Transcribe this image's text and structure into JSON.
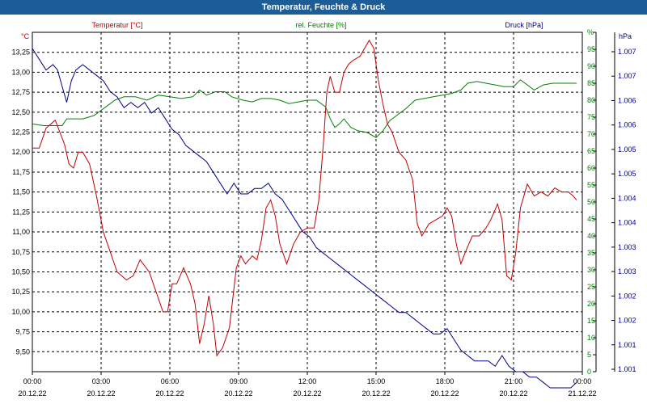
{
  "title": "Temperatur, Feuchte & Druck",
  "chart_data": {
    "type": "line",
    "x_ticks": [
      {
        "time": "00:00",
        "date": "20.12.22"
      },
      {
        "time": "03:00",
        "date": "20.12.22"
      },
      {
        "time": "06:00",
        "date": "20.12.22"
      },
      {
        "time": "09:00",
        "date": "20.12.22"
      },
      {
        "time": "12:00",
        "date": "20.12.22"
      },
      {
        "time": "15:00",
        "date": "20.12.22"
      },
      {
        "time": "18:00",
        "date": "20.12.22"
      },
      {
        "time": "21:00",
        "date": "20.12.22"
      },
      {
        "time": "00:00",
        "date": "21.12.22"
      }
    ],
    "xlim_hours": [
      0,
      24
    ],
    "grid": true,
    "axes": {
      "temperature": {
        "unit": "°C",
        "color": "#c00000",
        "ylim": [
          9.25,
          13.5
        ],
        "ticks": [
          "9,50",
          "9,75",
          "10,00",
          "10,25",
          "10,50",
          "10,75",
          "11,00",
          "11,25",
          "11,50",
          "11,75",
          "12,00",
          "12,25",
          "12,50",
          "12,75",
          "13,00",
          "13,25"
        ]
      },
      "humidity": {
        "unit": "%",
        "color": "#008000",
        "ylim": [
          0,
          100
        ],
        "ticks": [
          "0",
          "5",
          "10",
          "15",
          "20",
          "25",
          "30",
          "35",
          "40",
          "45",
          "50",
          "55",
          "60",
          "65",
          "70",
          "75",
          "80",
          "85",
          "90",
          "95",
          "%"
        ]
      },
      "pressure": {
        "unit": "hPa",
        "color": "#00008b",
        "ylim": [
          1.001,
          1.0073
        ],
        "ticks": [
          "1.001",
          "1.001",
          "1.002",
          "1.002",
          "1.003",
          "1.003",
          "1.004",
          "1.004",
          "1.005",
          "1.005",
          "1.006",
          "1.006",
          "1.007",
          "1.007"
        ]
      }
    },
    "series": [
      {
        "name": "Temperatur [°C]",
        "axis": "temperature",
        "color": "#c00000",
        "points": [
          [
            0,
            12.05
          ],
          [
            0.3,
            12.05
          ],
          [
            0.6,
            12.3
          ],
          [
            1.0,
            12.4
          ],
          [
            1.4,
            12.1
          ],
          [
            1.6,
            11.85
          ],
          [
            1.8,
            11.8
          ],
          [
            2.0,
            12.0
          ],
          [
            2.2,
            12.0
          ],
          [
            2.5,
            11.85
          ],
          [
            2.8,
            11.45
          ],
          [
            3.1,
            11.0
          ],
          [
            3.4,
            10.75
          ],
          [
            3.7,
            10.5
          ],
          [
            4.1,
            10.4
          ],
          [
            4.4,
            10.45
          ],
          [
            4.7,
            10.65
          ],
          [
            5.1,
            10.5
          ],
          [
            5.4,
            10.25
          ],
          [
            5.7,
            10.0
          ],
          [
            5.9,
            10.0
          ],
          [
            6.1,
            10.35
          ],
          [
            6.3,
            10.35
          ],
          [
            6.6,
            10.55
          ],
          [
            6.9,
            10.35
          ],
          [
            7.1,
            10.1
          ],
          [
            7.3,
            9.6
          ],
          [
            7.5,
            9.85
          ],
          [
            7.7,
            10.2
          ],
          [
            7.9,
            9.85
          ],
          [
            8.05,
            9.45
          ],
          [
            8.3,
            9.55
          ],
          [
            8.6,
            9.8
          ],
          [
            8.9,
            10.55
          ],
          [
            9.1,
            10.7
          ],
          [
            9.3,
            10.6
          ],
          [
            9.6,
            10.7
          ],
          [
            9.8,
            10.65
          ],
          [
            10.0,
            10.9
          ],
          [
            10.2,
            11.3
          ],
          [
            10.4,
            11.4
          ],
          [
            10.6,
            11.2
          ],
          [
            10.8,
            10.85
          ],
          [
            11.1,
            10.6
          ],
          [
            11.4,
            10.85
          ],
          [
            11.7,
            11.0
          ],
          [
            12.0,
            11.05
          ],
          [
            12.3,
            11.05
          ],
          [
            12.5,
            11.4
          ],
          [
            12.7,
            12.1
          ],
          [
            12.85,
            12.75
          ],
          [
            13.0,
            12.95
          ],
          [
            13.2,
            12.75
          ],
          [
            13.4,
            12.75
          ],
          [
            13.6,
            13.0
          ],
          [
            13.8,
            13.1
          ],
          [
            14.0,
            13.15
          ],
          [
            14.3,
            13.2
          ],
          [
            14.5,
            13.3
          ],
          [
            14.7,
            13.4
          ],
          [
            14.9,
            13.3
          ],
          [
            15.1,
            12.9
          ],
          [
            15.3,
            12.6
          ],
          [
            15.5,
            12.35
          ],
          [
            15.7,
            12.25
          ],
          [
            16.0,
            12.0
          ],
          [
            16.3,
            11.9
          ],
          [
            16.6,
            11.65
          ],
          [
            16.8,
            11.1
          ],
          [
            17.0,
            10.95
          ],
          [
            17.3,
            11.1
          ],
          [
            17.6,
            11.15
          ],
          [
            17.9,
            11.2
          ],
          [
            18.1,
            11.3
          ],
          [
            18.3,
            11.2
          ],
          [
            18.5,
            10.85
          ],
          [
            18.7,
            10.6
          ],
          [
            18.9,
            10.75
          ],
          [
            19.2,
            10.95
          ],
          [
            19.5,
            10.95
          ],
          [
            19.8,
            11.05
          ],
          [
            20.0,
            11.15
          ],
          [
            20.3,
            11.35
          ],
          [
            20.5,
            11.15
          ],
          [
            20.7,
            10.45
          ],
          [
            20.9,
            10.4
          ],
          [
            21.1,
            10.75
          ],
          [
            21.3,
            11.3
          ],
          [
            21.6,
            11.6
          ],
          [
            21.9,
            11.45
          ],
          [
            22.2,
            11.5
          ],
          [
            22.5,
            11.45
          ],
          [
            22.8,
            11.55
          ],
          [
            23.1,
            11.5
          ],
          [
            23.4,
            11.5
          ],
          [
            23.6,
            11.45
          ],
          [
            23.75,
            11.4
          ]
        ]
      },
      {
        "name": "rel. Feuchte [%]",
        "axis": "humidity",
        "color": "#008000",
        "points": [
          [
            0,
            73
          ],
          [
            0.5,
            72.5
          ],
          [
            1.0,
            72.5
          ],
          [
            1.3,
            72.5
          ],
          [
            1.5,
            74.5
          ],
          [
            1.8,
            74.5
          ],
          [
            2.2,
            74.5
          ],
          [
            2.7,
            75.5
          ],
          [
            3.0,
            77
          ],
          [
            3.3,
            78.5
          ],
          [
            3.6,
            80
          ],
          [
            4.0,
            81
          ],
          [
            4.5,
            81
          ],
          [
            5.0,
            80
          ],
          [
            5.5,
            81.5
          ],
          [
            6.0,
            81
          ],
          [
            6.5,
            80.5
          ],
          [
            7.0,
            81
          ],
          [
            7.3,
            83
          ],
          [
            7.6,
            81.5
          ],
          [
            8.0,
            82.5
          ],
          [
            8.4,
            82.5
          ],
          [
            8.7,
            81
          ],
          [
            9.2,
            80
          ],
          [
            9.6,
            79.5
          ],
          [
            10.0,
            80.5
          ],
          [
            10.4,
            80.5
          ],
          [
            10.8,
            80
          ],
          [
            11.2,
            79
          ],
          [
            11.6,
            79.5
          ],
          [
            12.0,
            80
          ],
          [
            12.4,
            80
          ],
          [
            12.8,
            78
          ],
          [
            13.0,
            74.5
          ],
          [
            13.2,
            72
          ],
          [
            13.4,
            73
          ],
          [
            13.6,
            74.5
          ],
          [
            13.9,
            72
          ],
          [
            14.2,
            71
          ],
          [
            14.6,
            70.5
          ],
          [
            15.0,
            69
          ],
          [
            15.3,
            71
          ],
          [
            15.6,
            74
          ],
          [
            15.9,
            75.5
          ],
          [
            16.3,
            77.5
          ],
          [
            16.7,
            80
          ],
          [
            17.1,
            80.5
          ],
          [
            17.5,
            81
          ],
          [
            17.9,
            81.5
          ],
          [
            18.3,
            82
          ],
          [
            18.7,
            83
          ],
          [
            19.0,
            85
          ],
          [
            19.4,
            85.5
          ],
          [
            19.8,
            85
          ],
          [
            20.2,
            84.5
          ],
          [
            20.6,
            84
          ],
          [
            21.0,
            84
          ],
          [
            21.3,
            86
          ],
          [
            21.6,
            84.5
          ],
          [
            21.9,
            83
          ],
          [
            22.3,
            84.5
          ],
          [
            22.7,
            85
          ],
          [
            23.1,
            85
          ],
          [
            23.5,
            85
          ],
          [
            23.75,
            85
          ]
        ]
      },
      {
        "name": "Druck [hPa]",
        "axis": "pressure",
        "color": "#00008b",
        "points": [
          [
            0,
            1.007
          ],
          [
            0.3,
            1.0068
          ],
          [
            0.6,
            1.0066
          ],
          [
            0.9,
            1.0067
          ],
          [
            1.1,
            1.0066
          ],
          [
            1.3,
            1.0063
          ],
          [
            1.5,
            1.006
          ],
          [
            1.7,
            1.0064
          ],
          [
            1.9,
            1.0066
          ],
          [
            2.2,
            1.0067
          ],
          [
            2.5,
            1.0066
          ],
          [
            2.8,
            1.0065
          ],
          [
            3.1,
            1.0064
          ],
          [
            3.4,
            1.0062
          ],
          [
            3.7,
            1.0061
          ],
          [
            4.0,
            1.0059
          ],
          [
            4.3,
            1.006
          ],
          [
            4.6,
            1.0059
          ],
          [
            4.9,
            1.006
          ],
          [
            5.2,
            1.0058
          ],
          [
            5.5,
            1.0059
          ],
          [
            5.8,
            1.0057
          ],
          [
            6.1,
            1.0055
          ],
          [
            6.4,
            1.0054
          ],
          [
            6.7,
            1.0052
          ],
          [
            7.0,
            1.0051
          ],
          [
            7.3,
            1.005
          ],
          [
            7.6,
            1.0049
          ],
          [
            7.9,
            1.0047
          ],
          [
            8.2,
            1.0045
          ],
          [
            8.5,
            1.0043
          ],
          [
            8.8,
            1.0045
          ],
          [
            9.1,
            1.0043
          ],
          [
            9.4,
            1.0043
          ],
          [
            9.7,
            1.0044
          ],
          [
            10.0,
            1.0044
          ],
          [
            10.3,
            1.0045
          ],
          [
            10.6,
            1.0043
          ],
          [
            10.9,
            1.0042
          ],
          [
            11.2,
            1.004
          ],
          [
            11.5,
            1.0038
          ],
          [
            11.8,
            1.0036
          ],
          [
            12.1,
            1.0035
          ],
          [
            12.4,
            1.0033
          ],
          [
            12.7,
            1.0032
          ],
          [
            13.0,
            1.0031
          ],
          [
            13.3,
            1.003
          ],
          [
            13.6,
            1.0029
          ],
          [
            13.9,
            1.0028
          ],
          [
            14.2,
            1.0027
          ],
          [
            14.5,
            1.0026
          ],
          [
            14.8,
            1.0025
          ],
          [
            15.1,
            1.0024
          ],
          [
            15.4,
            1.0023
          ],
          [
            15.7,
            1.0022
          ],
          [
            16.0,
            1.0021
          ],
          [
            16.3,
            1.0021
          ],
          [
            16.6,
            1.002
          ],
          [
            16.9,
            1.0019
          ],
          [
            17.2,
            1.0018
          ],
          [
            17.5,
            1.0017
          ],
          [
            17.8,
            1.0017
          ],
          [
            18.1,
            1.0018
          ],
          [
            18.4,
            1.0016
          ],
          [
            18.7,
            1.0014
          ],
          [
            19.0,
            1.0013
          ],
          [
            19.3,
            1.0012
          ],
          [
            19.6,
            1.0012
          ],
          [
            19.9,
            1.0012
          ],
          [
            20.2,
            1.0011
          ],
          [
            20.5,
            1.0013
          ],
          [
            20.8,
            1.0011
          ],
          [
            21.1,
            1.001
          ],
          [
            21.4,
            1.001
          ],
          [
            21.7,
            1.0009
          ],
          [
            22.0,
            1.0009
          ],
          [
            22.3,
            1.0008
          ],
          [
            22.6,
            1.0007
          ],
          [
            22.9,
            1.0007
          ],
          [
            23.2,
            1.0007
          ],
          [
            23.5,
            1.0007
          ],
          [
            23.75,
            1.0008
          ]
        ]
      }
    ]
  }
}
